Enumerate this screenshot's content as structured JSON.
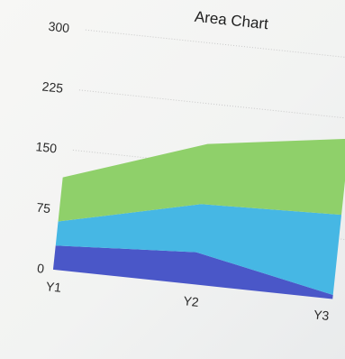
{
  "chart_data": {
    "type": "area",
    "stacked": true,
    "title": "Area Chart",
    "xlabel": "",
    "ylabel": "",
    "categories": [
      "Y1",
      "Y2",
      "Y3"
    ],
    "ylim": [
      0,
      300
    ],
    "yticks": [
      0,
      75,
      150,
      225,
      300
    ],
    "grid": true,
    "legend": "none",
    "series": [
      {
        "values": [
          30,
          40,
          5
        ],
        "color": "#4a57c8"
      },
      {
        "values": [
          30,
          60,
          100
        ],
        "color": "#46b7e4"
      },
      {
        "values": [
          55,
          75,
          95
        ],
        "color": "#8fd06a"
      }
    ]
  }
}
